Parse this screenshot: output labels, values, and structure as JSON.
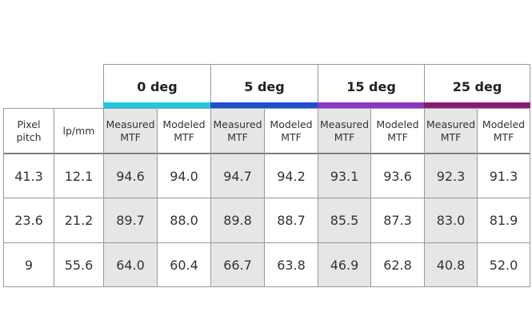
{
  "header": {
    "groups": [
      {
        "label": "0 deg",
        "color": "#1ec8e0"
      },
      {
        "label": "5 deg",
        "color": "#1a4fd6"
      },
      {
        "label": "15 deg",
        "color": "#8a35c4"
      },
      {
        "label": "25 deg",
        "color": "#8a1a6e"
      }
    ],
    "columns": [
      "Pixel pitch",
      "lp/mm",
      "Measured MTF",
      "Modeled MTF",
      "Measured MTF",
      "Modeled MTF",
      "Measured MTF",
      "Modeled MTF",
      "Measured MTF",
      "Modeled MTF"
    ]
  },
  "table": {
    "rows": [
      [
        "41.3",
        "12.1",
        "94.6",
        "94.0",
        "94.7",
        "94.2",
        "93.1",
        "93.6",
        "92.3",
        "91.3"
      ],
      [
        "23.6",
        "21.2",
        "89.7",
        "88.0",
        "89.8",
        "88.7",
        "85.5",
        "87.3",
        "83.0",
        "81.9"
      ],
      [
        "9",
        "55.6",
        "64.0",
        "60.4",
        "66.7",
        "63.8",
        "46.9",
        "62.8",
        "40.8",
        "52.0"
      ]
    ]
  }
}
